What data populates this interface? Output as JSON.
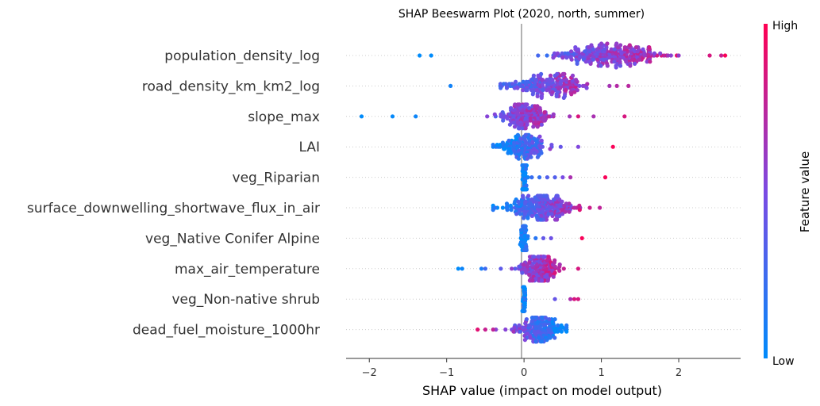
{
  "chart_data": {
    "type": "scatter",
    "subtype": "shap-beeswarm",
    "title": "SHAP Beeswarm Plot (2020, north, summer)",
    "xlabel": "SHAP value (impact on model output)",
    "xlim": [
      -2.3,
      2.8
    ],
    "xticks": [
      -2,
      -1,
      0,
      1,
      2
    ],
    "xtick_labels": [
      "−2",
      "−1",
      "0",
      "1",
      "2"
    ],
    "colorbar": {
      "title": "Feature value",
      "high_label": "High",
      "low_label": "Low",
      "low_color": "#008bfb",
      "high_color": "#ff0052"
    },
    "zero_line_color": "#999999",
    "features": [
      {
        "name": "population_density_log",
        "center": 1.1,
        "spread": 0.35,
        "min": -1.35,
        "max": 2.6,
        "lowSide": "left",
        "n": 260,
        "outliers": [
          2.4,
          2.55,
          2.6,
          1.9,
          2.0,
          -1.35,
          -1.2
        ]
      },
      {
        "name": "road_density_km_km2_log",
        "center": 0.3,
        "spread": 0.25,
        "min": -0.95,
        "max": 1.35,
        "lowSide": "left",
        "n": 200,
        "outliers": [
          1.35,
          1.2,
          -0.95
        ]
      },
      {
        "name": "slope_max",
        "center": 0.0,
        "spread": 0.18,
        "min": -2.1,
        "max": 1.3,
        "lowSide": "left",
        "n": 170,
        "outliers": [
          -2.1,
          -1.7,
          -1.4,
          1.3,
          0.9,
          0.7
        ]
      },
      {
        "name": "LAI",
        "center": 0.0,
        "spread": 0.15,
        "min": -0.4,
        "max": 1.15,
        "lowSide": "left",
        "n": 150,
        "outliers": [
          1.15,
          0.7,
          -0.4
        ]
      },
      {
        "name": "veg_Riparian",
        "center": 0.0,
        "spread": 0.02,
        "min": -0.02,
        "max": 1.05,
        "lowSide": "left",
        "n": 90,
        "outliers": [
          1.05,
          0.6,
          0.5,
          0.1,
          0.2,
          0.3,
          0.4
        ]
      },
      {
        "name": "surface_downwelling_shortwave_flux_in_air",
        "center": 0.2,
        "spread": 0.22,
        "min": -0.4,
        "max": 0.98,
        "lowSide": "left",
        "n": 240,
        "outliers": [
          0.98,
          0.85,
          -0.4
        ]
      },
      {
        "name": "veg_Native Conifer Alpine",
        "center": 0.0,
        "spread": 0.02,
        "min": -0.05,
        "max": 0.75,
        "lowSide": "left",
        "n": 70,
        "outliers": [
          0.75,
          0.35,
          0.25,
          0.15,
          0.05
        ]
      },
      {
        "name": "max_air_temperature",
        "center": 0.2,
        "spread": 0.12,
        "min": -0.85,
        "max": 0.7,
        "lowSide": "left",
        "n": 180,
        "outliers": [
          -0.85,
          -0.8,
          -0.55,
          -0.5,
          -0.3,
          0.7
        ]
      },
      {
        "name": "veg_Non-native shrub",
        "center": 0.0,
        "spread": 0.01,
        "min": -0.02,
        "max": 0.7,
        "lowSide": "left",
        "n": 60,
        "outliers": [
          0.4,
          0.6,
          0.65,
          0.7
        ]
      },
      {
        "name": "dead_fuel_moisture_1000hr",
        "center": 0.2,
        "spread": 0.15,
        "min": -0.6,
        "max": 0.55,
        "lowSide": "right",
        "n": 180,
        "outliers": [
          -0.6,
          -0.5,
          -0.4,
          0.55
        ]
      }
    ]
  }
}
